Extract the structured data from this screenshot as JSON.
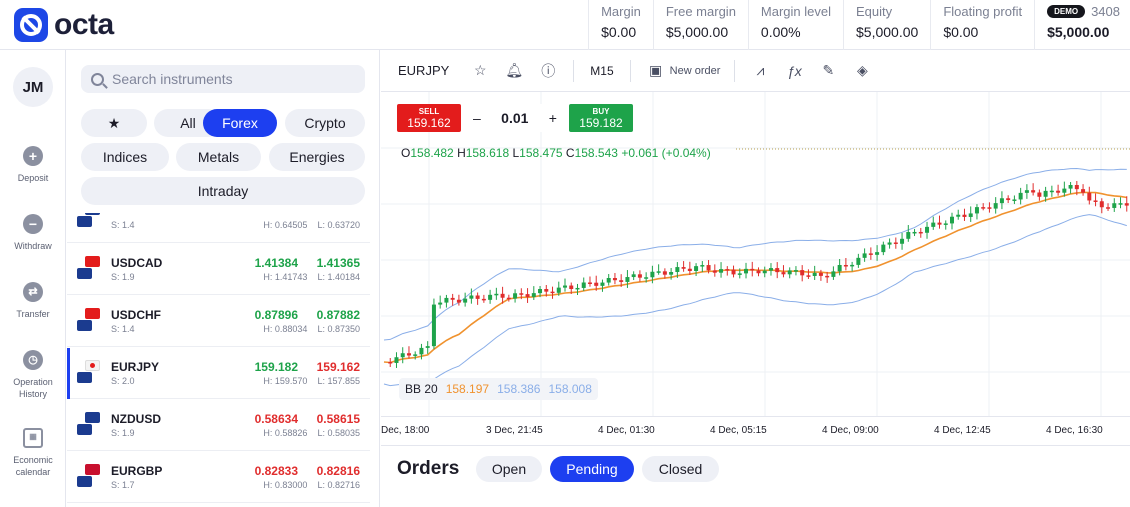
{
  "brand": {
    "name": "octa"
  },
  "account": {
    "metrics": [
      {
        "label": "Margin",
        "value": "$0.00"
      },
      {
        "label": "Free margin",
        "value": "$5,000.00"
      },
      {
        "label": "Margin level",
        "value": "0.00%"
      },
      {
        "label": "Equity",
        "value": "$5,000.00"
      },
      {
        "label": "Floating profit",
        "value": "$0.00"
      }
    ],
    "badge": "DEMO",
    "number": "3408",
    "balance": "$5,000.00"
  },
  "user": {
    "initials": "JM"
  },
  "rail": [
    {
      "label": "Deposit",
      "icon": "plus-icon"
    },
    {
      "label": "Withdraw",
      "icon": "minus-icon"
    },
    {
      "label": "Transfer",
      "icon": "transfer-icon"
    },
    {
      "label": "Operation History",
      "icon": "clock-icon"
    },
    {
      "label": "Economic calendar",
      "icon": "calendar-icon"
    }
  ],
  "search": {
    "placeholder": "Search instruments"
  },
  "filters": [
    "All",
    "Forex",
    "Crypto",
    "Indices",
    "Metals",
    "Energies",
    "Intraday"
  ],
  "active_filter": "Forex",
  "instruments": [
    {
      "symbol": "",
      "spread": "S: 1.4",
      "bid": "",
      "ask": "",
      "high": "H: 0.64505",
      "low": "L: 0.63720",
      "dir": "up",
      "flags": [
        "#1b3b8f",
        "#1b3b8f"
      ]
    },
    {
      "symbol": "USDCAD",
      "spread": "S: 1.9",
      "bid": "1.41384",
      "ask": "1.41365",
      "high": "H: 1.41743",
      "low": "L: 1.40184",
      "dir": "up",
      "flags": [
        "#e31c1c",
        "#1b3b8f"
      ]
    },
    {
      "symbol": "USDCHF",
      "spread": "S: 1.4",
      "bid": "0.87896",
      "ask": "0.87882",
      "high": "H: 0.88034",
      "low": "L: 0.87350",
      "dir": "up",
      "flags": [
        "#e31c1c",
        "#1b3b8f"
      ]
    },
    {
      "symbol": "EURJPY",
      "spread": "S: 2.0",
      "bid": "159.182",
      "ask": "159.162",
      "high": "H: 159.570",
      "low": "L: 157.855",
      "dir": "mixed",
      "flags": [
        "#f4f4f4",
        "#1b3b8f"
      ]
    },
    {
      "symbol": "NZDUSD",
      "spread": "S: 1.9",
      "bid": "0.58634",
      "ask": "0.58615",
      "high": "H: 0.58826",
      "low": "L: 0.58035",
      "dir": "dn",
      "flags": [
        "#1b3b8f",
        "#1b3b8f"
      ]
    },
    {
      "symbol": "EURGBP",
      "spread": "S: 1.7",
      "bid": "0.82833",
      "ask": "0.82816",
      "high": "H: 0.83000",
      "low": "L: 0.82716",
      "dir": "dn",
      "flags": [
        "#c8102e",
        "#1b3b8f"
      ]
    }
  ],
  "chart": {
    "symbol": "EURJPY",
    "timeframe": "M15",
    "new_order": "New order",
    "sell": {
      "label": "SELL",
      "price": "159.162"
    },
    "buy": {
      "label": "BUY",
      "price": "159.182"
    },
    "volume": "0.01",
    "ohlc": {
      "o": "O",
      "ov": "158.482",
      "h": "H",
      "hv": "158.618",
      "l": "L",
      "lv": "158.475",
      "c": "C",
      "cv": "158.543",
      "chg": "+0.061 (+0.04%)"
    },
    "bb": {
      "label": "BB 20",
      "mid": "158.197",
      "upper": "158.386",
      "lower": "158.008"
    },
    "xticks": [
      "Dec, 18:00",
      "3 Dec, 21:45",
      "4 Dec, 01:30",
      "4 Dec, 05:15",
      "4 Dec, 09:00",
      "4 Dec, 12:45",
      "4 Dec, 16:30"
    ],
    "colors": {
      "up": "#1ea34a",
      "down": "#e02d2d",
      "middle": "#f0922e",
      "band": "#8aaee8"
    }
  },
  "chart_data": {
    "type": "line",
    "x": [
      "Dec, 18:00",
      "3 Dec, 21:45",
      "4 Dec, 01:30",
      "4 Dec, 05:15",
      "4 Dec, 09:00",
      "4 Dec, 12:45",
      "4 Dec, 16:30"
    ],
    "series": [
      {
        "name": "BB 20",
        "values": [
          157.95,
          158.05,
          158.02,
          158.12,
          158.15,
          158.35,
          158.45
        ]
      }
    ]
  },
  "orders": {
    "title": "Orders",
    "tabs": [
      "Open",
      "Pending",
      "Closed"
    ],
    "active": "Pending"
  }
}
